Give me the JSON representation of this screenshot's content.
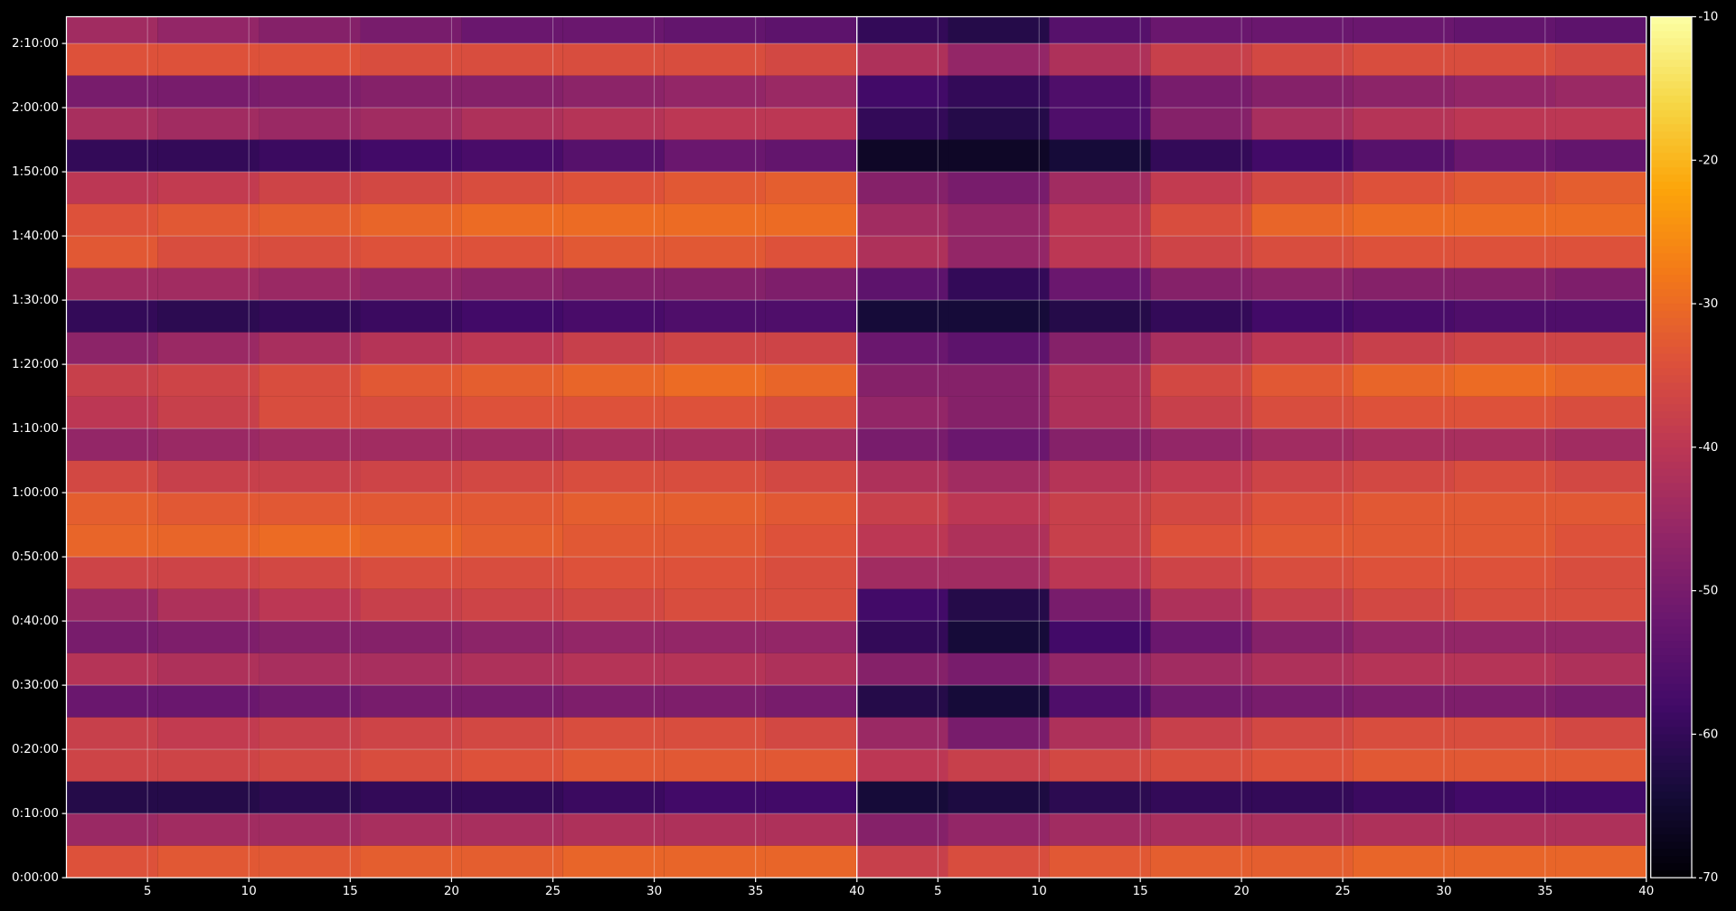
{
  "chart_data": [
    {
      "type": "heatmap",
      "x": [
        3,
        8,
        13,
        18,
        23,
        28,
        33,
        38
      ],
      "y": [
        150,
        450,
        750,
        1050,
        1350,
        1650,
        1950,
        2250,
        2550,
        2850,
        3150,
        3450,
        3750,
        4050,
        4350,
        4650,
        4950,
        5250,
        5550,
        5850,
        6150,
        6450,
        6750,
        7050,
        7350,
        7650,
        7950
      ],
      "values": [
        [
          -34,
          -33,
          -33,
          -32,
          -32,
          -31,
          -31,
          -31
        ],
        [
          -45,
          -44,
          -44,
          -43,
          -43,
          -42,
          -42,
          -42
        ],
        [
          -62,
          -62,
          -61,
          -60,
          -60,
          -59,
          -58,
          -58
        ],
        [
          -37,
          -37,
          -36,
          -35,
          -34,
          -33,
          -33,
          -33
        ],
        [
          -38,
          -39,
          -38,
          -37,
          -36,
          -35,
          -35,
          -36
        ],
        [
          -52,
          -52,
          -51,
          -50,
          -50,
          -49,
          -49,
          -50
        ],
        [
          -41,
          -42,
          -43,
          -43,
          -42,
          -41,
          -41,
          -42
        ],
        [
          -50,
          -49,
          -48,
          -48,
          -47,
          -46,
          -46,
          -46
        ],
        [
          -45,
          -42,
          -40,
          -38,
          -37,
          -36,
          -35,
          -35
        ],
        [
          -37,
          -37,
          -36,
          -35,
          -35,
          -34,
          -34,
          -35
        ],
        [
          -31,
          -31,
          -30,
          -31,
          -32,
          -33,
          -33,
          -34
        ],
        [
          -32,
          -33,
          -33,
          -33,
          -33,
          -32,
          -32,
          -33
        ],
        [
          -36,
          -38,
          -38,
          -37,
          -36,
          -35,
          -35,
          -36
        ],
        [
          -46,
          -45,
          -44,
          -44,
          -44,
          -43,
          -43,
          -44
        ],
        [
          -40,
          -38,
          -35,
          -35,
          -34,
          -34,
          -34,
          -35
        ],
        [
          -38,
          -37,
          -35,
          -33,
          -32,
          -31,
          -30,
          -31
        ],
        [
          -47,
          -45,
          -43,
          -41,
          -40,
          -38,
          -37,
          -37
        ],
        [
          -60,
          -61,
          -60,
          -59,
          -58,
          -57,
          -56,
          -56
        ],
        [
          -44,
          -44,
          -45,
          -46,
          -47,
          -48,
          -48,
          -49
        ],
        [
          -33,
          -35,
          -35,
          -34,
          -34,
          -33,
          -33,
          -34
        ],
        [
          -34,
          -33,
          -32,
          -31,
          -30,
          -30,
          -30,
          -30
        ],
        [
          -40,
          -39,
          -37,
          -36,
          -35,
          -34,
          -33,
          -32
        ],
        [
          -60,
          -60,
          -59,
          -58,
          -57,
          -55,
          -52,
          -53
        ],
        [
          -43,
          -44,
          -45,
          -44,
          -42,
          -41,
          -40,
          -40
        ],
        [
          -50,
          -50,
          -49,
          -48,
          -48,
          -47,
          -46,
          -45
        ],
        [
          -34,
          -34,
          -34,
          -35,
          -35,
          -35,
          -35,
          -36
        ],
        [
          -44,
          -46,
          -48,
          -50,
          -52,
          -52,
          -53,
          -54
        ]
      ],
      "xlim": [
        1,
        40
      ],
      "xticks": [
        5,
        10,
        15,
        20,
        25,
        30,
        35,
        40
      ],
      "ylim": [
        0,
        8050
      ],
      "yticks": [
        {
          "value": 0,
          "label": "0:00:00"
        },
        {
          "value": 600,
          "label": "0:10:00"
        },
        {
          "value": 1200,
          "label": "0:20:00"
        },
        {
          "value": 1800,
          "label": "0:30:00"
        },
        {
          "value": 2400,
          "label": "0:40:00"
        },
        {
          "value": 3000,
          "label": "0:50:00"
        },
        {
          "value": 3600,
          "label": "1:00:00"
        },
        {
          "value": 4200,
          "label": "1:10:00"
        },
        {
          "value": 4800,
          "label": "1:20:00"
        },
        {
          "value": 5400,
          "label": "1:30:00"
        },
        {
          "value": 6000,
          "label": "1:40:00"
        },
        {
          "value": 6600,
          "label": "1:50:00"
        },
        {
          "value": 7200,
          "label": "2:00:00"
        },
        {
          "value": 7800,
          "label": "2:10:00"
        }
      ],
      "grid": true,
      "colormap": "inferno",
      "clim": [
        -70,
        -10
      ]
    },
    {
      "type": "heatmap",
      "x": [
        3,
        8,
        13,
        18,
        23,
        28,
        33,
        38
      ],
      "y": [
        150,
        450,
        750,
        1050,
        1350,
        1650,
        1950,
        2250,
        2550,
        2850,
        3150,
        3450,
        3750,
        4050,
        4350,
        4650,
        4950,
        5250,
        5550,
        5850,
        6150,
        6450,
        6750,
        7050,
        7350,
        7650,
        7950
      ],
      "values": [
        [
          -38,
          -35,
          -33,
          -32,
          -32,
          -31,
          -31,
          -31
        ],
        [
          -48,
          -46,
          -44,
          -43,
          -43,
          -42,
          -42,
          -42
        ],
        [
          -64,
          -63,
          -61,
          -60,
          -60,
          -59,
          -58,
          -58
        ],
        [
          -40,
          -38,
          -36,
          -35,
          -34,
          -33,
          -33,
          -33
        ],
        [
          -45,
          -50,
          -42,
          -38,
          -36,
          -35,
          -35,
          -36
        ],
        [
          -62,
          -64,
          -56,
          -51,
          -50,
          -49,
          -49,
          -50
        ],
        [
          -48,
          -50,
          -46,
          -44,
          -42,
          -41,
          -41,
          -42
        ],
        [
          -60,
          -64,
          -58,
          -52,
          -48,
          -46,
          -46,
          -46
        ],
        [
          -58,
          -62,
          -50,
          -42,
          -38,
          -36,
          -35,
          -35
        ],
        [
          -44,
          -44,
          -40,
          -37,
          -35,
          -34,
          -34,
          -35
        ],
        [
          -40,
          -42,
          -38,
          -34,
          -33,
          -33,
          -33,
          -34
        ],
        [
          -38,
          -40,
          -38,
          -36,
          -34,
          -33,
          -33,
          -33
        ],
        [
          -42,
          -44,
          -41,
          -39,
          -37,
          -36,
          -35,
          -36
        ],
        [
          -50,
          -52,
          -48,
          -46,
          -44,
          -43,
          -43,
          -44
        ],
        [
          -46,
          -48,
          -42,
          -38,
          -35,
          -34,
          -34,
          -35
        ],
        [
          -48,
          -48,
          -42,
          -36,
          -33,
          -31,
          -30,
          -31
        ],
        [
          -52,
          -54,
          -48,
          -43,
          -40,
          -38,
          -37,
          -37
        ],
        [
          -64,
          -64,
          -62,
          -60,
          -58,
          -57,
          -56,
          -56
        ],
        [
          -54,
          -60,
          -52,
          -48,
          -47,
          -48,
          -48,
          -49
        ],
        [
          -42,
          -46,
          -40,
          -37,
          -35,
          -34,
          -34,
          -34
        ],
        [
          -44,
          -46,
          -40,
          -35,
          -31,
          -30,
          -30,
          -30
        ],
        [
          -48,
          -50,
          -44,
          -39,
          -36,
          -34,
          -33,
          -32
        ],
        [
          -66,
          -66,
          -64,
          -60,
          -58,
          -55,
          -52,
          -53
        ],
        [
          -60,
          -62,
          -56,
          -48,
          -43,
          -41,
          -40,
          -40
        ],
        [
          -58,
          -60,
          -56,
          -50,
          -48,
          -47,
          -46,
          -45
        ],
        [
          -42,
          -46,
          -42,
          -38,
          -36,
          -35,
          -35,
          -36
        ],
        [
          -60,
          -62,
          -55,
          -52,
          -52,
          -52,
          -53,
          -54
        ]
      ],
      "xlim": [
        1,
        40
      ],
      "xticks": [
        5,
        10,
        15,
        20,
        25,
        30,
        35,
        40
      ],
      "ylim": [
        0,
        8050
      ],
      "yticks": [
        0,
        600,
        1200,
        1800,
        2400,
        3000,
        3600,
        4200,
        4800,
        5400,
        6000,
        6600,
        7200,
        7800
      ],
      "grid": true,
      "colormap": "inferno",
      "clim": [
        -70,
        -10
      ],
      "colorbar": {
        "lim": [
          -70,
          -10
        ],
        "ticks": [
          -70,
          -60,
          -50,
          -40,
          -30,
          -20,
          -10
        ]
      }
    }
  ]
}
